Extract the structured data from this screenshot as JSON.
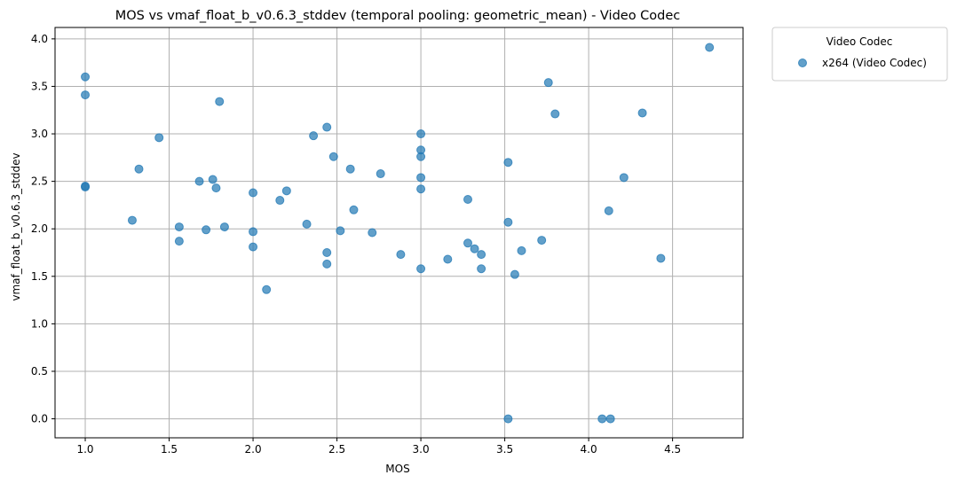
{
  "chart_data": {
    "type": "scatter",
    "title": "MOS vs vmaf_float_b_v0.6.3_stddev (temporal pooling: geometric_mean) - Video Codec",
    "xlabel": "MOS",
    "ylabel": "vmaf_float_b_v0.6.3_stddev",
    "xlim": [
      0.82,
      4.92
    ],
    "ylim": [
      -0.2,
      4.12
    ],
    "xticks": [
      1.0,
      1.5,
      2.0,
      2.5,
      3.0,
      3.5,
      4.0,
      4.5
    ],
    "xtick_labels": [
      "1.0",
      "1.5",
      "2.0",
      "2.5",
      "3.0",
      "3.5",
      "4.0",
      "4.5"
    ],
    "yticks": [
      0.0,
      0.5,
      1.0,
      1.5,
      2.0,
      2.5,
      3.0,
      3.5,
      4.0
    ],
    "ytick_labels": [
      "0.0",
      "0.5",
      "1.0",
      "1.5",
      "2.0",
      "2.5",
      "3.0",
      "3.5",
      "4.0"
    ],
    "grid": true,
    "legend": {
      "title": "Video Codec",
      "placement": "outside-upper-right"
    },
    "series": [
      {
        "name": "x264 (Video Codec)",
        "color": "#1f77b4",
        "points": [
          [
            1.0,
            3.6
          ],
          [
            1.0,
            3.41
          ],
          [
            1.0,
            2.45
          ],
          [
            1.0,
            2.44
          ],
          [
            1.28,
            2.09
          ],
          [
            1.32,
            2.63
          ],
          [
            1.44,
            2.96
          ],
          [
            1.56,
            2.02
          ],
          [
            1.56,
            1.87
          ],
          [
            1.68,
            2.5
          ],
          [
            1.72,
            1.99
          ],
          [
            1.76,
            2.52
          ],
          [
            1.78,
            2.43
          ],
          [
            1.8,
            3.34
          ],
          [
            1.83,
            2.02
          ],
          [
            2.0,
            2.38
          ],
          [
            2.0,
            1.97
          ],
          [
            2.0,
            1.81
          ],
          [
            2.08,
            1.36
          ],
          [
            2.16,
            2.3
          ],
          [
            2.2,
            2.4
          ],
          [
            2.32,
            2.05
          ],
          [
            2.36,
            2.98
          ],
          [
            2.44,
            3.07
          ],
          [
            2.44,
            1.75
          ],
          [
            2.44,
            1.63
          ],
          [
            2.48,
            2.76
          ],
          [
            2.52,
            1.98
          ],
          [
            2.58,
            2.63
          ],
          [
            2.6,
            2.2
          ],
          [
            2.71,
            1.96
          ],
          [
            2.76,
            2.58
          ],
          [
            2.88,
            1.73
          ],
          [
            3.0,
            3.0
          ],
          [
            3.0,
            2.83
          ],
          [
            3.0,
            2.76
          ],
          [
            3.0,
            2.54
          ],
          [
            3.0,
            2.42
          ],
          [
            3.0,
            1.58
          ],
          [
            3.16,
            1.68
          ],
          [
            3.28,
            2.31
          ],
          [
            3.28,
            1.85
          ],
          [
            3.32,
            1.79
          ],
          [
            3.36,
            1.73
          ],
          [
            3.36,
            1.58
          ],
          [
            3.52,
            2.7
          ],
          [
            3.52,
            2.07
          ],
          [
            3.52,
            0.0
          ],
          [
            3.56,
            1.52
          ],
          [
            3.6,
            1.77
          ],
          [
            3.72,
            1.88
          ],
          [
            3.76,
            3.54
          ],
          [
            3.8,
            3.21
          ],
          [
            4.08,
            0.0
          ],
          [
            4.12,
            2.19
          ],
          [
            4.13,
            0.0
          ],
          [
            4.21,
            2.54
          ],
          [
            4.32,
            3.22
          ],
          [
            4.43,
            1.69
          ],
          [
            4.72,
            3.91
          ]
        ]
      }
    ]
  }
}
